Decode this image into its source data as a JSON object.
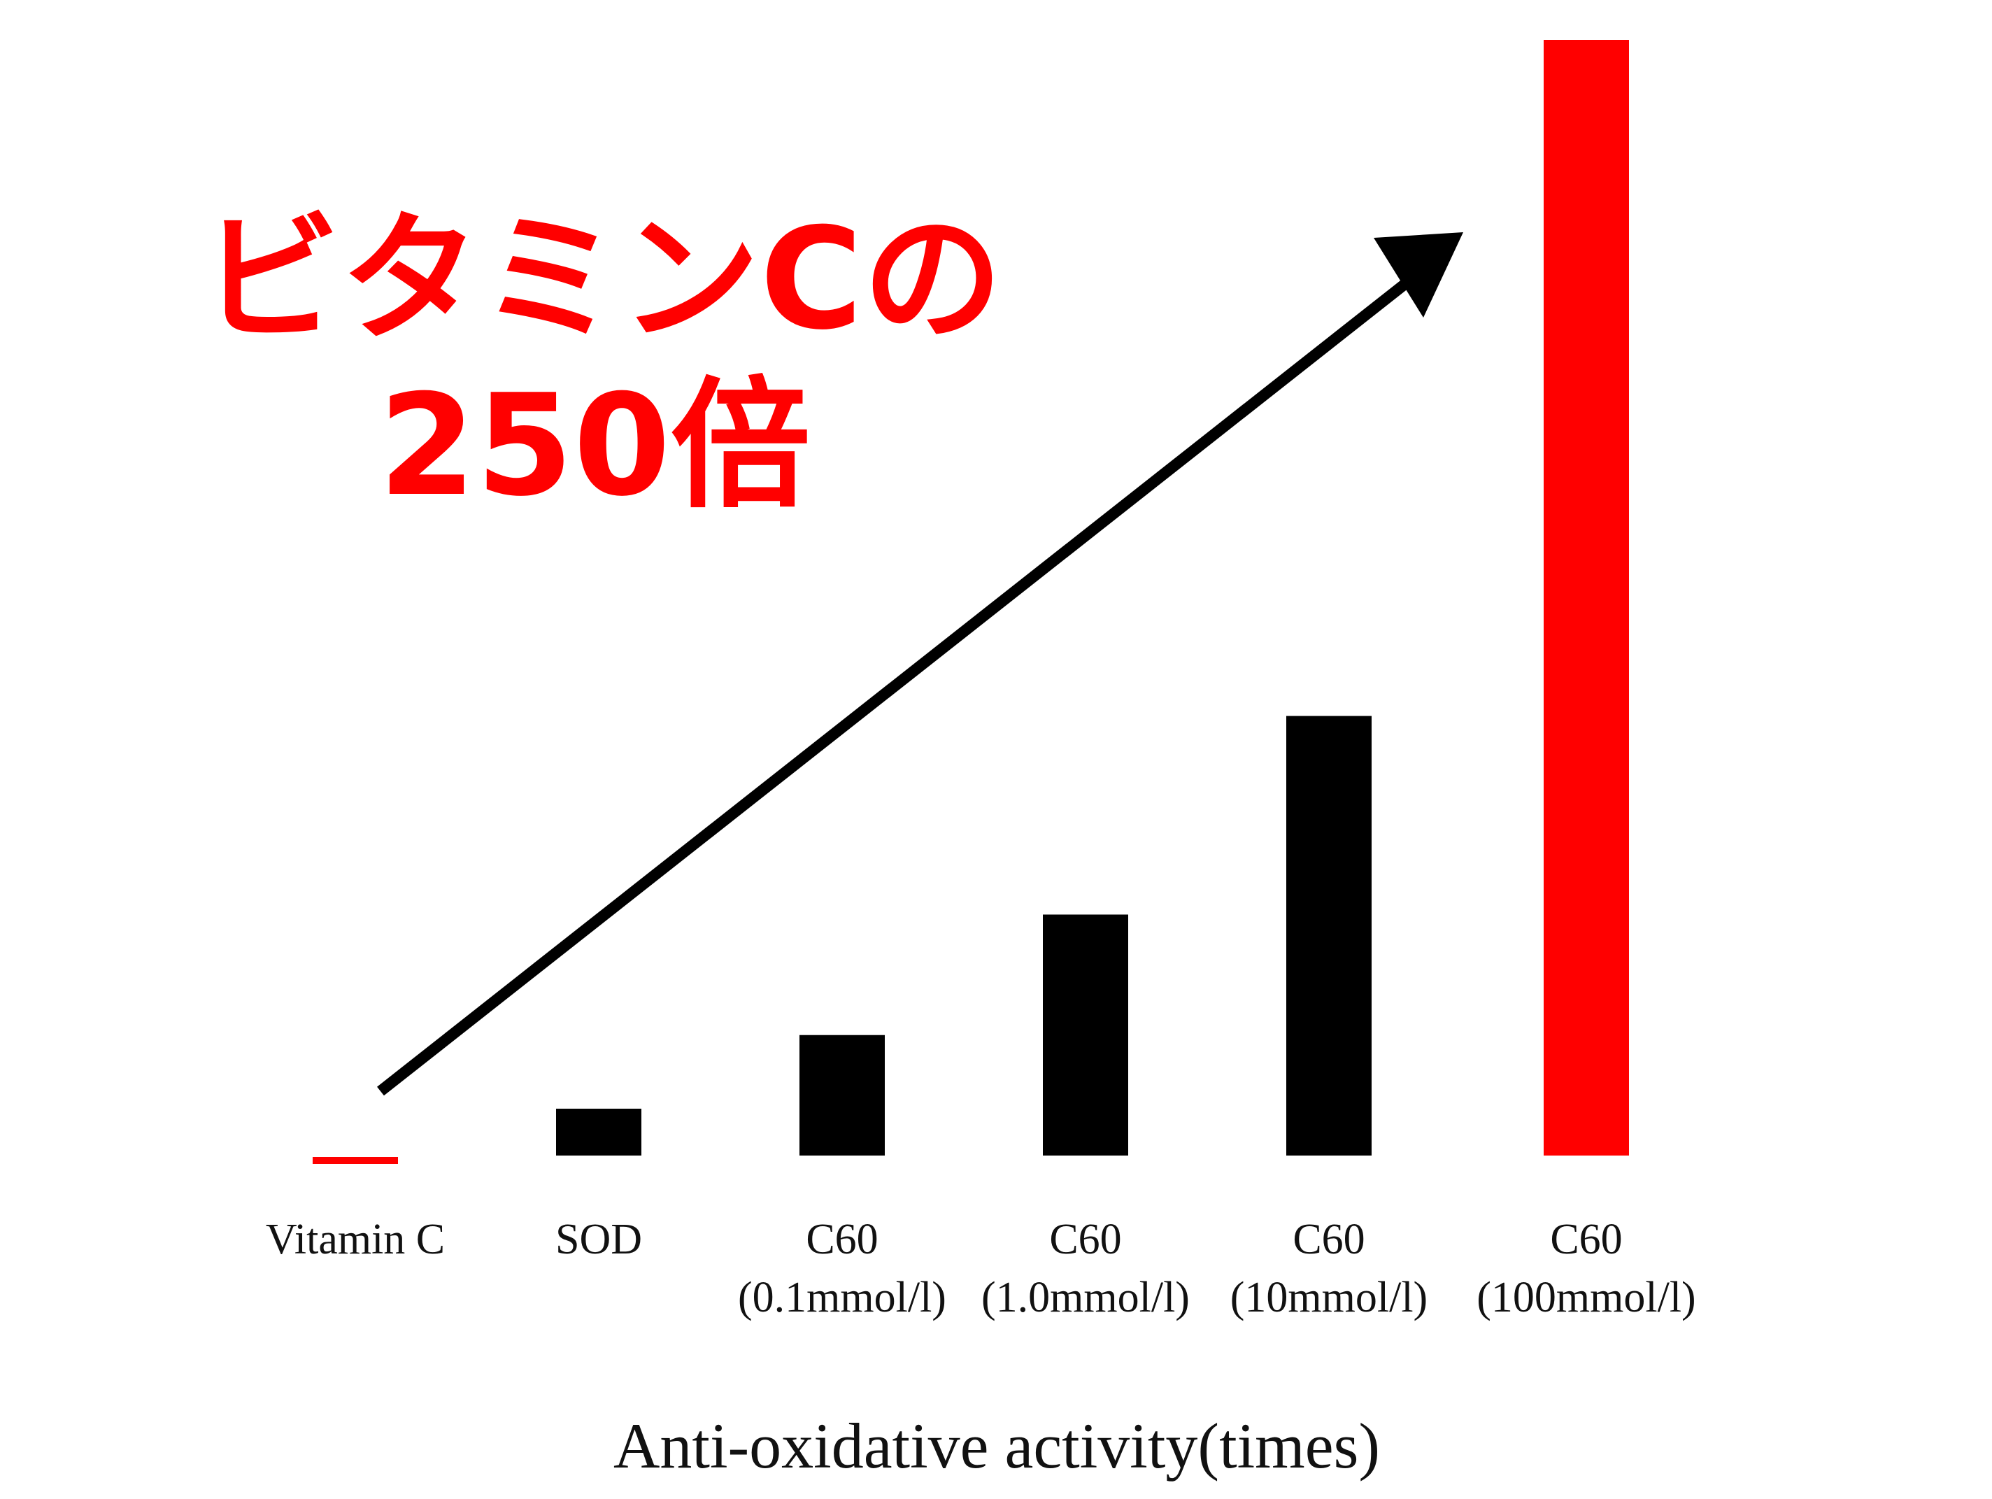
{
  "headline": {
    "line1": "ビタミンCの",
    "line2": "250倍"
  },
  "colors": {
    "highlight": "#ff0000",
    "bar": "#000000",
    "arrow": "#000000",
    "background": "#ffffff"
  },
  "chart_data": {
    "type": "bar",
    "categories": [
      [
        "Vitamin C"
      ],
      [
        "SOD"
      ],
      [
        "C60",
        "(0.1mmol/l)"
      ],
      [
        "C60",
        "(1.0mmol/l)"
      ],
      [
        "C60",
        "(10mmol/l)"
      ],
      [
        "C60",
        "(100mmol/l)"
      ]
    ],
    "values": [
      1,
      10.5,
      27,
      54,
      98.5,
      250
    ],
    "highlight": [
      true,
      false,
      false,
      false,
      false,
      true
    ],
    "title": "ビタミンCの 250倍",
    "xlabel": "Anti-oxidative activity(times)",
    "ylabel": "",
    "ylim": [
      0,
      250
    ],
    "grid": false,
    "legend": "none",
    "annotation": "upward-arrow"
  }
}
